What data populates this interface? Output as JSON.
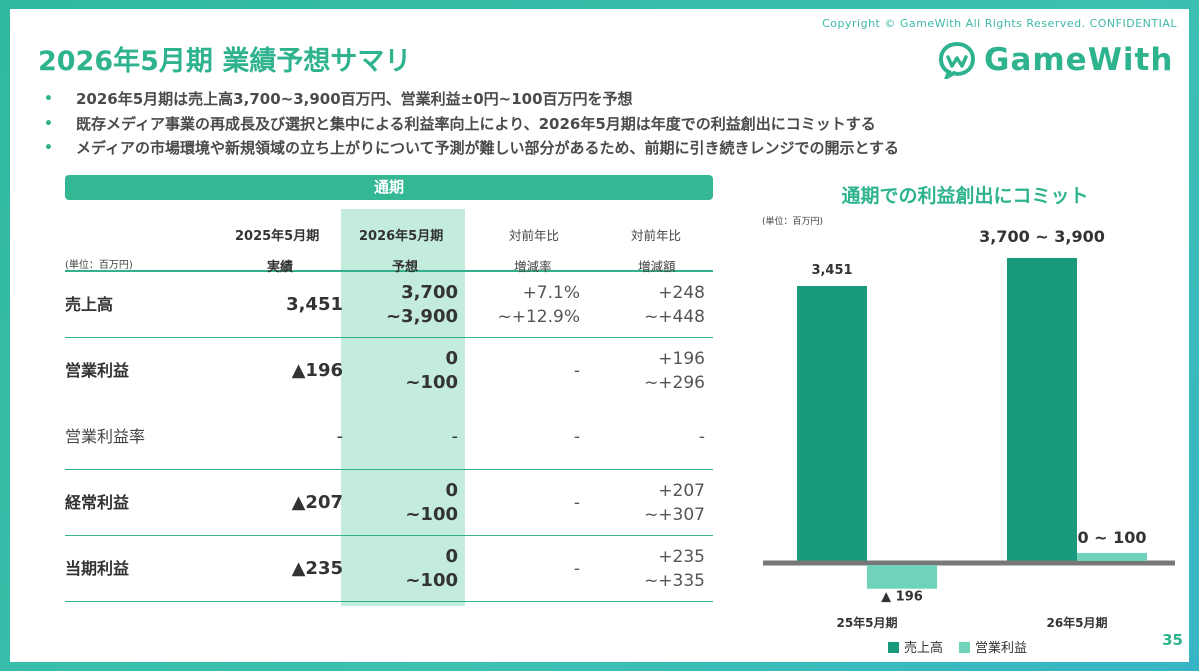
{
  "copyright": "Copyright © GameWith All Rights Reserved. CONFIDENTIAL",
  "title": "2026年5月期 業績予想サマリ",
  "logo_text": "GameWith",
  "bullets": [
    "2026年5月期は売上高3,700~3,900百万円、営業利益±0円~100百万円を予想",
    "既存メディア事業の再成長及び選択と集中による利益率向上により、2026年5月期は年度での利益創出にコミットする",
    "メディアの市場環境や新規領域の立ち上がりについて予測が難しい部分があるため、前期に引き続きレンジでの開示とする"
  ],
  "table": {
    "header_band": "通期",
    "unit": "(単位：百万円)",
    "col2_top": "2025年5月期",
    "col2_bot": "実績",
    "col3_top": "2026年5月期",
    "col3_bot": "予想",
    "col4_top": "対前年比",
    "col4_bot": "増減率",
    "col5_top": "対前年比",
    "col5_bot": "増減額",
    "rows": [
      {
        "label": "売上高",
        "actual": "3,451",
        "fc1": "3,700",
        "fc2": "~3,900",
        "r1": "+7.1%",
        "r2": "~+12.9%",
        "a1": "+248",
        "a2": "~+448"
      },
      {
        "label": "営業利益",
        "actual": "▲196",
        "fc1": "0",
        "fc2": "~100",
        "r1": "-",
        "r2": "",
        "a1": "+196",
        "a2": "~+296"
      },
      {
        "label": "営業利益率",
        "actual": "-",
        "fc1": "-",
        "fc2": "",
        "r1": "-",
        "r2": "",
        "a1": "-",
        "a2": ""
      },
      {
        "label": "経常利益",
        "actual": "▲207",
        "fc1": "0",
        "fc2": "~100",
        "r1": "-",
        "r2": "",
        "a1": "+207",
        "a2": "~+307"
      },
      {
        "label": "当期利益",
        "actual": "▲235",
        "fc1": "0",
        "fc2": "~100",
        "r1": "-",
        "r2": "",
        "a1": "+235",
        "a2": "~+335"
      }
    ]
  },
  "chart_data": {
    "type": "bar",
    "title": "通期での利益創出にコミット",
    "unit": "(単位：百万円)",
    "categories": [
      "25年5月期",
      "26年5月期"
    ],
    "series": [
      {
        "name": "売上高",
        "values": [
          3451,
          3800
        ],
        "labels": [
          "3,451",
          "3,700 ~ 3,900"
        ],
        "color": "#1a9a7c"
      },
      {
        "name": "営業利益",
        "values": [
          -196,
          100
        ],
        "labels": [
          "▲ 196",
          "0 ~ 100"
        ],
        "color": "#6fd3b9"
      }
    ],
    "legend": "bottom-center",
    "grid": false
  },
  "page_number": "35",
  "colors": {
    "brand": "#2fb38f",
    "dark_bar": "#1a9a7c",
    "light_bar": "#6fd3b9",
    "highlight": "#c3ecdc"
  }
}
